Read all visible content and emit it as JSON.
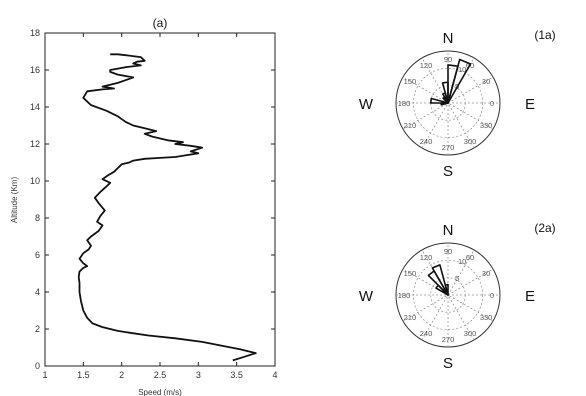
{
  "chart_data": [
    {
      "type": "line",
      "title": "(a)",
      "xlabel": "Speed (m/s)",
      "ylabel": "Altitude (Km)",
      "xlim": [
        1,
        4
      ],
      "ylim": [
        0,
        18
      ],
      "xticks": [
        "1",
        "1.5",
        "2",
        "2.5",
        "3",
        "3.5",
        "4"
      ],
      "yticks": [
        "0",
        "2",
        "4",
        "6",
        "8",
        "10",
        "12",
        "14",
        "16",
        "18"
      ],
      "grid": false,
      "series": [
        {
          "x": [
            3.45,
            3.6,
            3.75,
            3.55,
            3.3,
            3.05,
            2.7,
            2.35,
            2.1,
            1.95,
            1.85,
            1.75,
            1.62,
            1.55,
            1.5,
            1.47,
            1.45,
            1.45,
            1.44,
            1.45,
            1.5,
            1.55,
            1.5,
            1.45,
            1.5,
            1.57,
            1.6,
            1.55,
            1.6,
            1.7,
            1.75,
            1.68,
            1.72,
            1.78,
            1.7,
            1.65,
            1.72,
            1.8,
            1.85,
            1.75,
            1.82,
            1.9,
            1.95,
            2.0,
            2.1,
            2.15,
            2.3,
            2.5,
            2.7,
            2.85,
            3.0,
            2.9,
            3.05,
            2.9,
            2.7,
            2.8,
            2.6,
            2.4,
            2.3,
            2.45,
            2.3,
            2.15,
            2.05,
            1.95,
            1.8,
            1.6,
            1.5,
            1.55,
            1.75,
            1.9,
            1.75,
            1.95,
            2.05,
            2.15,
            1.95,
            1.85,
            1.85,
            2.05,
            2.25,
            2.15,
            2.2,
            2.3,
            2.25,
            2.05,
            1.95,
            1.85
          ],
          "y": [
            0.3,
            0.5,
            0.7,
            0.9,
            1.1,
            1.3,
            1.5,
            1.65,
            1.8,
            1.9,
            2.0,
            2.1,
            2.3,
            2.6,
            3.0,
            3.5,
            4.0,
            4.5,
            4.8,
            5.1,
            5.3,
            5.4,
            5.55,
            5.8,
            6.1,
            6.3,
            6.5,
            6.8,
            7.0,
            7.3,
            7.6,
            7.8,
            8.1,
            8.4,
            8.8,
            9.1,
            9.4,
            9.7,
            9.9,
            10.1,
            10.3,
            10.5,
            10.7,
            10.9,
            11.0,
            11.1,
            11.2,
            11.25,
            11.3,
            11.4,
            11.5,
            11.6,
            11.8,
            11.9,
            12.0,
            12.1,
            12.2,
            12.4,
            12.55,
            12.7,
            12.85,
            13.0,
            13.2,
            13.5,
            13.8,
            14.1,
            14.5,
            14.85,
            14.95,
            15.0,
            15.1,
            15.3,
            15.45,
            15.6,
            15.75,
            15.9,
            16.0,
            16.15,
            16.25,
            16.35,
            16.45,
            16.5,
            16.7,
            16.8,
            16.85,
            16.85
          ]
        }
      ]
    },
    {
      "type": "rose",
      "label": "(1a)",
      "compass": {
        "N": "N",
        "S": "S",
        "E": "E",
        "W": "W"
      },
      "angle_ticks": [
        "0",
        "30",
        "60",
        "90",
        "120",
        "150",
        "180",
        "210",
        "240",
        "270",
        "300",
        "330"
      ],
      "radial_ticks": [
        "5",
        "10"
      ],
      "rmax": 15,
      "bins": [
        {
          "angle": 67.5,
          "r": 13
        },
        {
          "angle": 82.5,
          "r": 11
        },
        {
          "angle": 97.5,
          "r": 6
        },
        {
          "angle": 112.5,
          "r": 3
        },
        {
          "angle": 127.5,
          "r": 2
        },
        {
          "angle": 172.5,
          "r": 5
        },
        {
          "angle": 187.5,
          "r": 2
        }
      ]
    },
    {
      "type": "rose",
      "label": "(2a)",
      "compass": {
        "N": "N",
        "S": "S",
        "E": "E",
        "W": "W"
      },
      "angle_ticks": [
        "0",
        "30",
        "60",
        "90",
        "120",
        "150",
        "180",
        "210",
        "240",
        "270",
        "300",
        "330"
      ],
      "radial_ticks": [
        "5",
        "10"
      ],
      "rmax": 15,
      "bins": [
        {
          "angle": 112.5,
          "r": 9
        },
        {
          "angle": 127.5,
          "r": 8
        },
        {
          "angle": 142.5,
          "r": 4
        },
        {
          "angle": 97.5,
          "r": 3
        }
      ]
    }
  ]
}
